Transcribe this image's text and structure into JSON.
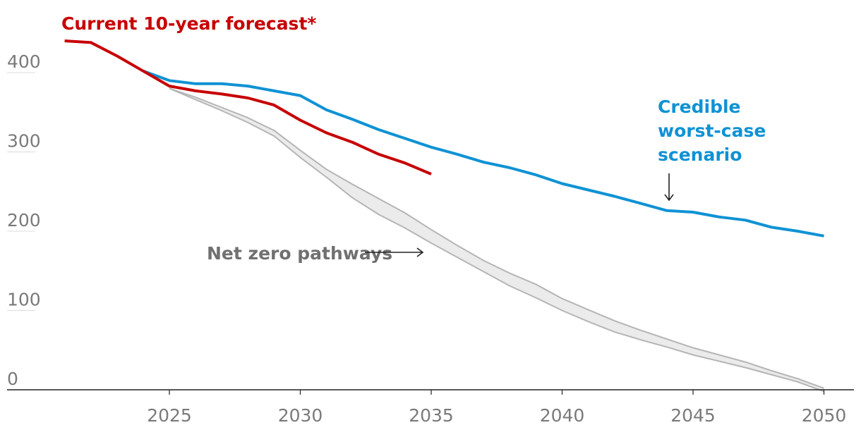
{
  "chart_data": {
    "type": "line",
    "title": "",
    "xlabel": "",
    "ylabel": "",
    "xlim": [
      2020,
      2051
    ],
    "ylim": [
      -5,
      440
    ],
    "yticks": [
      0,
      100,
      200,
      300,
      400
    ],
    "xticks": [
      2025,
      2030,
      2035,
      2040,
      2045,
      2050
    ],
    "colors": {
      "current": "#c70000",
      "worst": "#0f92d4",
      "netzero_band_fill": "#ebebeb",
      "netzero_line": "#b5b5b5",
      "axis": "#222222",
      "grid": "#dcdcdc",
      "annotation": "#707070"
    },
    "series": [
      {
        "name": "Current 10-year forecast*",
        "key": "current",
        "x": [
          2021,
          2022,
          2023,
          2024,
          2025,
          2026,
          2027,
          2028,
          2029,
          2030,
          2031,
          2032,
          2033,
          2034,
          2035
        ],
        "y": [
          440,
          438,
          421,
          402,
          383,
          377,
          373,
          368,
          359,
          340,
          324,
          312,
          297,
          286,
          272
        ]
      },
      {
        "name": "Credible worst-case scenario",
        "key": "worst",
        "x": [
          2024,
          2025,
          2026,
          2027,
          2028,
          2029,
          2030,
          2031,
          2032,
          2033,
          2034,
          2035,
          2036,
          2037,
          2038,
          2039,
          2040,
          2041,
          2042,
          2043,
          2044,
          2045,
          2046,
          2047,
          2048,
          2049,
          2050
        ],
        "y": [
          402,
          390,
          386,
          386,
          383,
          377,
          371,
          353,
          341,
          328,
          317,
          306,
          297,
          287,
          280,
          271,
          260,
          252,
          244,
          235,
          226,
          224,
          218,
          214,
          205,
          200,
          194
        ]
      },
      {
        "name": "Net zero pathways (upper)",
        "key": "netzero_upper",
        "x": [
          2025,
          2026,
          2027,
          2028,
          2029,
          2030,
          2031,
          2032,
          2033,
          2034,
          2035,
          2036,
          2037,
          2038,
          2039,
          2040,
          2041,
          2042,
          2043,
          2044,
          2045,
          2046,
          2047,
          2048,
          2049,
          2050
        ],
        "y": [
          380,
          369,
          356,
          343,
          327,
          302,
          278,
          259,
          241,
          223,
          202,
          182,
          163,
          147,
          133,
          115,
          101,
          87,
          75,
          64,
          53,
          44,
          35,
          24,
          14,
          2
        ]
      },
      {
        "name": "Net zero pathways (lower)",
        "key": "netzero_lower",
        "x": [
          2025,
          2026,
          2027,
          2028,
          2029,
          2030,
          2031,
          2032,
          2033,
          2034,
          2035,
          2036,
          2037,
          2038,
          2039,
          2040,
          2041,
          2042,
          2043,
          2044,
          2045,
          2046,
          2047,
          2048,
          2049,
          2050
        ],
        "y": [
          380,
          366,
          352,
          337,
          320,
          293,
          268,
          242,
          221,
          204,
          185,
          167,
          149,
          131,
          116,
          100,
          86,
          73,
          63,
          54,
          44,
          36,
          28,
          19,
          10,
          -2
        ]
      }
    ],
    "annotations": {
      "current_label": "Current 10-year forecast*",
      "worst_label_lines": [
        "Credible",
        "worst-case",
        "scenario"
      ],
      "netzero_label": "Net zero pathways"
    }
  }
}
